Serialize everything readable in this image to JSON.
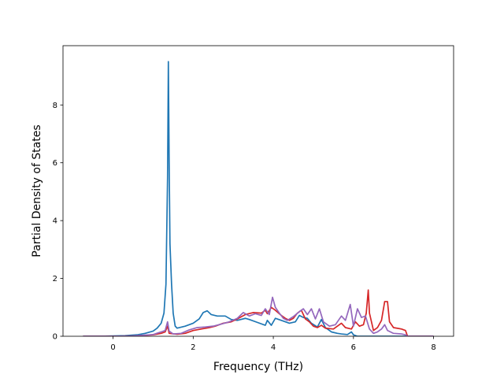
{
  "chart_data": {
    "type": "line",
    "title": "",
    "xlabel": "Frequency (THz)",
    "ylabel": "Partial Density of States",
    "xlim": [
      -1.25,
      8.5
    ],
    "ylim": [
      0,
      10.05
    ],
    "xticks": [
      "0",
      "2",
      "4",
      "6",
      "8"
    ],
    "xtick_values": [
      0,
      2,
      4,
      6,
      8
    ],
    "yticks": [
      "0",
      "2",
      "4",
      "6",
      "8"
    ],
    "ytick_values": [
      0,
      2,
      4,
      6,
      8
    ],
    "grid": false,
    "legend": "none",
    "series": [
      {
        "color": "#1f77b4",
        "points": [
          [
            -0.75,
            0
          ],
          [
            -0.3,
            0
          ],
          [
            0,
            0.01
          ],
          [
            0.3,
            0.02
          ],
          [
            0.6,
            0.05
          ],
          [
            0.8,
            0.1
          ],
          [
            1.0,
            0.18
          ],
          [
            1.1,
            0.28
          ],
          [
            1.2,
            0.45
          ],
          [
            1.27,
            0.8
          ],
          [
            1.32,
            1.8
          ],
          [
            1.36,
            5.5
          ],
          [
            1.38,
            9.5
          ],
          [
            1.4,
            6
          ],
          [
            1.42,
            3.2
          ],
          [
            1.46,
            1.8
          ],
          [
            1.5,
            0.8
          ],
          [
            1.55,
            0.35
          ],
          [
            1.6,
            0.28
          ],
          [
            1.8,
            0.35
          ],
          [
            2.0,
            0.45
          ],
          [
            2.15,
            0.6
          ],
          [
            2.25,
            0.82
          ],
          [
            2.35,
            0.88
          ],
          [
            2.45,
            0.75
          ],
          [
            2.6,
            0.7
          ],
          [
            2.8,
            0.7
          ],
          [
            2.95,
            0.58
          ],
          [
            3.1,
            0.55
          ],
          [
            3.3,
            0.62
          ],
          [
            3.4,
            0.58
          ],
          [
            3.6,
            0.48
          ],
          [
            3.8,
            0.38
          ],
          [
            3.85,
            0.55
          ],
          [
            3.95,
            0.38
          ],
          [
            4.05,
            0.62
          ],
          [
            4.2,
            0.55
          ],
          [
            4.4,
            0.45
          ],
          [
            4.55,
            0.5
          ],
          [
            4.65,
            0.72
          ],
          [
            4.75,
            0.65
          ],
          [
            4.85,
            0.62
          ],
          [
            4.95,
            0.45
          ],
          [
            5.1,
            0.32
          ],
          [
            5.2,
            0.58
          ],
          [
            5.3,
            0.3
          ],
          [
            5.45,
            0.15
          ],
          [
            5.6,
            0.1
          ],
          [
            5.7,
            0.08
          ],
          [
            5.85,
            0.06
          ],
          [
            5.95,
            0.15
          ],
          [
            6.0,
            0.05
          ],
          [
            6.1,
            0
          ],
          [
            6.3,
            0
          ],
          [
            8.0,
            0
          ]
        ]
      },
      {
        "color": "#d62728",
        "points": [
          [
            -0.75,
            0
          ],
          [
            0,
            0
          ],
          [
            0.5,
            0.01
          ],
          [
            1.0,
            0.05
          ],
          [
            1.2,
            0.1
          ],
          [
            1.3,
            0.15
          ],
          [
            1.36,
            0.35
          ],
          [
            1.4,
            0.1
          ],
          [
            1.6,
            0.07
          ],
          [
            1.8,
            0.1
          ],
          [
            2.0,
            0.2
          ],
          [
            2.2,
            0.25
          ],
          [
            2.4,
            0.3
          ],
          [
            2.55,
            0.35
          ],
          [
            2.75,
            0.45
          ],
          [
            2.95,
            0.5
          ],
          [
            3.1,
            0.6
          ],
          [
            3.3,
            0.75
          ],
          [
            3.5,
            0.82
          ],
          [
            3.7,
            0.8
          ],
          [
            3.8,
            0.9
          ],
          [
            3.85,
            0.78
          ],
          [
            3.95,
            1.0
          ],
          [
            4.05,
            0.9
          ],
          [
            4.2,
            0.72
          ],
          [
            4.3,
            0.62
          ],
          [
            4.4,
            0.55
          ],
          [
            4.5,
            0.62
          ],
          [
            4.6,
            0.8
          ],
          [
            4.7,
            0.9
          ],
          [
            4.8,
            0.6
          ],
          [
            4.9,
            0.5
          ],
          [
            5.0,
            0.35
          ],
          [
            5.1,
            0.3
          ],
          [
            5.2,
            0.38
          ],
          [
            5.3,
            0.28
          ],
          [
            5.5,
            0.25
          ],
          [
            5.7,
            0.45
          ],
          [
            5.8,
            0.3
          ],
          [
            5.95,
            0.25
          ],
          [
            6.05,
            0.5
          ],
          [
            6.15,
            0.35
          ],
          [
            6.25,
            0.4
          ],
          [
            6.32,
            0.8
          ],
          [
            6.37,
            1.6
          ],
          [
            6.4,
            0.8
          ],
          [
            6.5,
            0.2
          ],
          [
            6.6,
            0.3
          ],
          [
            6.7,
            0.55
          ],
          [
            6.78,
            1.2
          ],
          [
            6.85,
            1.2
          ],
          [
            6.9,
            0.5
          ],
          [
            7.0,
            0.3
          ],
          [
            7.2,
            0.25
          ],
          [
            7.3,
            0.2
          ],
          [
            7.35,
            0
          ],
          [
            8.0,
            0
          ]
        ]
      },
      {
        "color": "#9467bd",
        "points": [
          [
            -0.75,
            0
          ],
          [
            0,
            0
          ],
          [
            0.5,
            0.01
          ],
          [
            1.0,
            0.06
          ],
          [
            1.2,
            0.15
          ],
          [
            1.3,
            0.2
          ],
          [
            1.36,
            0.5
          ],
          [
            1.4,
            0.18
          ],
          [
            1.5,
            0.08
          ],
          [
            1.7,
            0.1
          ],
          [
            1.9,
            0.22
          ],
          [
            2.1,
            0.3
          ],
          [
            2.3,
            0.32
          ],
          [
            2.5,
            0.35
          ],
          [
            2.7,
            0.42
          ],
          [
            2.9,
            0.5
          ],
          [
            3.1,
            0.62
          ],
          [
            3.25,
            0.82
          ],
          [
            3.4,
            0.7
          ],
          [
            3.55,
            0.78
          ],
          [
            3.7,
            0.72
          ],
          [
            3.8,
            0.95
          ],
          [
            3.9,
            0.75
          ],
          [
            3.98,
            1.35
          ],
          [
            4.05,
            1.0
          ],
          [
            4.15,
            0.8
          ],
          [
            4.25,
            0.62
          ],
          [
            4.35,
            0.55
          ],
          [
            4.5,
            0.68
          ],
          [
            4.65,
            0.85
          ],
          [
            4.75,
            0.95
          ],
          [
            4.85,
            0.75
          ],
          [
            4.95,
            0.95
          ],
          [
            5.05,
            0.6
          ],
          [
            5.15,
            0.95
          ],
          [
            5.25,
            0.5
          ],
          [
            5.4,
            0.35
          ],
          [
            5.55,
            0.4
          ],
          [
            5.7,
            0.7
          ],
          [
            5.8,
            0.55
          ],
          [
            5.92,
            1.1
          ],
          [
            6.0,
            0.35
          ],
          [
            6.1,
            0.95
          ],
          [
            6.2,
            0.65
          ],
          [
            6.3,
            0.7
          ],
          [
            6.4,
            0.25
          ],
          [
            6.5,
            0.1
          ],
          [
            6.6,
            0.15
          ],
          [
            6.7,
            0.25
          ],
          [
            6.78,
            0.4
          ],
          [
            6.85,
            0.2
          ],
          [
            7.0,
            0.1
          ],
          [
            7.2,
            0.08
          ],
          [
            7.3,
            0.05
          ],
          [
            7.35,
            0
          ],
          [
            8.0,
            0
          ]
        ]
      }
    ]
  }
}
